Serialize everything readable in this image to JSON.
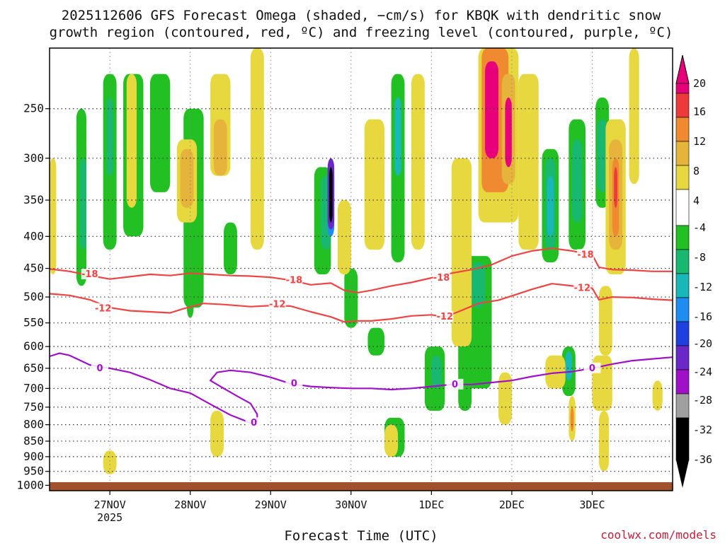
{
  "chart_data": {
    "type": "heatmap",
    "title_line1": "2025112606 GFS Forecast Omega (shaded, −cm/s) for KBQK with dendritic snow",
    "title_line2": "growth region (contoured, red, ºC) and freezing level (contoured, purple, ºC)",
    "xlabel": "Forecast Time (UTC)",
    "ylabel": "",
    "credit": "coolwx.com/models",
    "y_axis": {
      "unit": "hPa",
      "ticks": [
        250,
        300,
        350,
        400,
        450,
        500,
        550,
        600,
        650,
        700,
        750,
        800,
        850,
        900,
        950,
        1000
      ],
      "range": [
        200,
        1020
      ]
    },
    "x_axis": {
      "unit": "forecast hour",
      "range": [
        0,
        186
      ],
      "ticks": [
        {
          "hour": 18,
          "label": "27NOV",
          "sublabel": "2025"
        },
        {
          "hour": 42,
          "label": "28NOV",
          "sublabel": ""
        },
        {
          "hour": 66,
          "label": "29NOV",
          "sublabel": ""
        },
        {
          "hour": 90,
          "label": "30NOV",
          "sublabel": ""
        },
        {
          "hour": 114,
          "label": "1DEC",
          "sublabel": ""
        },
        {
          "hour": 138,
          "label": "2DEC",
          "sublabel": ""
        },
        {
          "hour": 162,
          "label": "3DEC",
          "sublabel": ""
        }
      ]
    },
    "colorbar": {
      "labels": [
        "20",
        "16",
        "12",
        "8",
        "4",
        "-4",
        "-8",
        "-12",
        "-16",
        "-20",
        "-24",
        "-28",
        "-32",
        "-36"
      ],
      "colors": {
        "c20": "#e8007a",
        "c16": "#ee3a3a",
        "c12": "#ef8a30",
        "c8": "#e6b43a",
        "c4": "#e8d840",
        "zero": "#ffffff",
        "cm4": "#22c022",
        "cm8": "#18b870",
        "cm12": "#18b8b8",
        "cm16": "#1e8cf0",
        "cm20": "#1e40e0",
        "cm24": "#6a28c8",
        "cm28": "#a010c8",
        "cm32": "#a0a0a0",
        "cm36": "#000000"
      }
    },
    "contours": [
      {
        "name": "dendritic-top",
        "label": "-18",
        "color": "#ee4444",
        "points": [
          [
            0,
            451
          ],
          [
            6,
            455
          ],
          [
            12,
            462
          ],
          [
            18,
            468
          ],
          [
            24,
            464
          ],
          [
            30,
            460
          ],
          [
            36,
            462
          ],
          [
            42,
            458
          ],
          [
            48,
            460
          ],
          [
            54,
            462
          ],
          [
            60,
            463
          ],
          [
            66,
            465
          ],
          [
            72,
            470
          ],
          [
            78,
            478
          ],
          [
            84,
            475
          ],
          [
            88,
            488
          ],
          [
            92,
            492
          ],
          [
            96,
            488
          ],
          [
            102,
            480
          ],
          [
            108,
            474
          ],
          [
            114,
            466
          ],
          [
            120,
            458
          ],
          [
            126,
            452
          ],
          [
            132,
            444
          ],
          [
            138,
            430
          ],
          [
            144,
            422
          ],
          [
            150,
            418
          ],
          [
            156,
            422
          ],
          [
            162,
            428
          ],
          [
            164,
            448
          ],
          [
            168,
            452
          ],
          [
            174,
            453
          ],
          [
            180,
            455
          ],
          [
            186,
            455
          ]
        ],
        "labels": [
          [
            12,
            460,
            "-18"
          ],
          [
            73,
            470,
            "-18"
          ],
          [
            117,
            466,
            "-18"
          ],
          [
            160,
            428,
            "-18"
          ]
        ]
      },
      {
        "name": "dendritic-bottom",
        "label": "-12",
        "color": "#ee4444",
        "points": [
          [
            0,
            494
          ],
          [
            6,
            497
          ],
          [
            12,
            505
          ],
          [
            18,
            520
          ],
          [
            24,
            526
          ],
          [
            30,
            528
          ],
          [
            36,
            530
          ],
          [
            40,
            522
          ],
          [
            46,
            512
          ],
          [
            52,
            514
          ],
          [
            60,
            518
          ],
          [
            66,
            516
          ],
          [
            72,
            517
          ],
          [
            78,
            528
          ],
          [
            84,
            538
          ],
          [
            88,
            548
          ],
          [
            92,
            546
          ],
          [
            96,
            546
          ],
          [
            102,
            542
          ],
          [
            108,
            536
          ],
          [
            114,
            534
          ],
          [
            118,
            538
          ],
          [
            122,
            528
          ],
          [
            128,
            512
          ],
          [
            134,
            506
          ],
          [
            140,
            494
          ],
          [
            144,
            486
          ],
          [
            150,
            476
          ],
          [
            156,
            480
          ],
          [
            162,
            484
          ],
          [
            164,
            505
          ],
          [
            168,
            500
          ],
          [
            174,
            501
          ],
          [
            180,
            504
          ],
          [
            186,
            506
          ]
        ],
        "labels": [
          [
            16,
            522,
            "-12"
          ],
          [
            68,
            514,
            "-12"
          ],
          [
            118,
            538,
            "-12"
          ],
          [
            159,
            484,
            "-12"
          ]
        ]
      },
      {
        "name": "freezing-level",
        "label": "0",
        "color": "#a010c8",
        "points": [
          [
            0,
            622
          ],
          [
            3,
            615
          ],
          [
            6,
            620
          ],
          [
            12,
            642
          ],
          [
            18,
            650
          ],
          [
            24,
            660
          ],
          [
            30,
            678
          ],
          [
            36,
            700
          ],
          [
            42,
            712
          ],
          [
            48,
            742
          ],
          [
            54,
            772
          ],
          [
            60,
            795
          ],
          [
            62,
            790
          ],
          [
            62,
            770
          ],
          [
            60,
            740
          ],
          [
            56,
            720
          ],
          [
            52,
            700
          ],
          [
            48,
            680
          ],
          [
            50,
            660
          ],
          [
            54,
            655
          ],
          [
            60,
            660
          ],
          [
            66,
            672
          ],
          [
            72,
            688
          ],
          [
            78,
            695
          ],
          [
            84,
            698
          ],
          [
            90,
            700
          ],
          [
            96,
            700
          ],
          [
            102,
            703
          ],
          [
            108,
            700
          ],
          [
            114,
            695
          ],
          [
            120,
            690
          ],
          [
            126,
            690
          ],
          [
            132,
            685
          ],
          [
            138,
            680
          ],
          [
            144,
            670
          ],
          [
            150,
            662
          ],
          [
            156,
            658
          ],
          [
            162,
            650
          ],
          [
            168,
            640
          ],
          [
            174,
            632
          ],
          [
            180,
            628
          ],
          [
            186,
            624
          ]
        ],
        "labels": [
          [
            15,
            650,
            "0"
          ],
          [
            61,
            795,
            "0"
          ],
          [
            73,
            688,
            "0"
          ],
          [
            121,
            690,
            "0"
          ],
          [
            162,
            650,
            "0"
          ]
        ]
      }
    ],
    "shaded_regions": [
      {
        "x": [
          8,
          11
        ],
        "p": [
          250,
          480
        ],
        "c": "cm4"
      },
      {
        "x": [
          9,
          11
        ],
        "p": [
          300,
          420
        ],
        "c": "cm8"
      },
      {
        "x": [
          16,
          20
        ],
        "p": [
          220,
          420
        ],
        "c": "cm4"
      },
      {
        "x": [
          17,
          19
        ],
        "p": [
          240,
          320
        ],
        "c": "cm8"
      },
      {
        "x": [
          22,
          28
        ],
        "p": [
          220,
          400
        ],
        "c": "cm4"
      },
      {
        "x": [
          30,
          36
        ],
        "p": [
          220,
          340
        ],
        "c": "cm4"
      },
      {
        "x": [
          40,
          46
        ],
        "p": [
          250,
          520
        ],
        "c": "cm4"
      },
      {
        "x": [
          52,
          56
        ],
        "p": [
          380,
          460
        ],
        "c": "cm4"
      },
      {
        "x": [
          41,
          43
        ],
        "p": [
          470,
          540
        ],
        "c": "cm4"
      },
      {
        "x": [
          79,
          84
        ],
        "p": [
          310,
          460
        ],
        "c": "cm4"
      },
      {
        "x": [
          81,
          84
        ],
        "p": [
          320,
          420
        ],
        "c": "cm8"
      },
      {
        "x": [
          83,
          85
        ],
        "p": [
          310,
          400
        ],
        "c": "cm16"
      },
      {
        "x": [
          83,
          85
        ],
        "p": [
          300,
          390
        ],
        "c": "cm24"
      },
      {
        "x": [
          83.5,
          84.5
        ],
        "p": [
          310,
          380
        ],
        "c": "cm36"
      },
      {
        "x": [
          88,
          92
        ],
        "p": [
          450,
          560
        ],
        "c": "cm4"
      },
      {
        "x": [
          102,
          106
        ],
        "p": [
          220,
          440
        ],
        "c": "cm4"
      },
      {
        "x": [
          103,
          105
        ],
        "p": [
          240,
          320
        ],
        "c": "cm12"
      },
      {
        "x": [
          112,
          118
        ],
        "p": [
          600,
          760
        ],
        "c": "cm4"
      },
      {
        "x": [
          114,
          117
        ],
        "p": [
          620,
          700
        ],
        "c": "cm8"
      },
      {
        "x": [
          124,
          132
        ],
        "p": [
          430,
          700
        ],
        "c": "cm4"
      },
      {
        "x": [
          126,
          130
        ],
        "p": [
          440,
          520
        ],
        "c": "cm8"
      },
      {
        "x": [
          122,
          126
        ],
        "p": [
          560,
          760
        ],
        "c": "cm4"
      },
      {
        "x": [
          147,
          152
        ],
        "p": [
          290,
          440
        ],
        "c": "cm4"
      },
      {
        "x": [
          148,
          151
        ],
        "p": [
          300,
          420
        ],
        "c": "cm8"
      },
      {
        "x": [
          148.5,
          150.5
        ],
        "p": [
          320,
          400
        ],
        "c": "cm12"
      },
      {
        "x": [
          155,
          160
        ],
        "p": [
          260,
          420
        ],
        "c": "cm4"
      },
      {
        "x": [
          156,
          159
        ],
        "p": [
          280,
          380
        ],
        "c": "cm8"
      },
      {
        "x": [
          163,
          167
        ],
        "p": [
          240,
          360
        ],
        "c": "cm4"
      },
      {
        "x": [
          163.5,
          166.5
        ],
        "p": [
          260,
          340
        ],
        "c": "cm8"
      },
      {
        "x": [
          153,
          157
        ],
        "p": [
          600,
          720
        ],
        "c": "cm4"
      },
      {
        "x": [
          154,
          156
        ],
        "p": [
          610,
          680
        ],
        "c": "cm12"
      },
      {
        "x": [
          100,
          106
        ],
        "p": [
          780,
          900
        ],
        "c": "cm4"
      },
      {
        "x": [
          95,
          100
        ],
        "p": [
          560,
          620
        ],
        "c": "cm4"
      },
      {
        "x": [
          0,
          2
        ],
        "p": [
          300,
          460
        ],
        "c": "c4"
      },
      {
        "x": [
          23,
          26
        ],
        "p": [
          220,
          360
        ],
        "c": "c4"
      },
      {
        "x": [
          38,
          44
        ],
        "p": [
          280,
          380
        ],
        "c": "c4"
      },
      {
        "x": [
          39,
          43
        ],
        "p": [
          290,
          360
        ],
        "c": "c8"
      },
      {
        "x": [
          48,
          54
        ],
        "p": [
          220,
          320
        ],
        "c": "c4"
      },
      {
        "x": [
          49,
          53
        ],
        "p": [
          260,
          320
        ],
        "c": "c8"
      },
      {
        "x": [
          60,
          64
        ],
        "p": [
          200,
          420
        ],
        "c": "c4"
      },
      {
        "x": [
          86,
          90
        ],
        "p": [
          350,
          460
        ],
        "c": "c4"
      },
      {
        "x": [
          94,
          100
        ],
        "p": [
          260,
          420
        ],
        "c": "c4"
      },
      {
        "x": [
          108,
          112
        ],
        "p": [
          220,
          420
        ],
        "c": "c4"
      },
      {
        "x": [
          120,
          126
        ],
        "p": [
          300,
          600
        ],
        "c": "c4"
      },
      {
        "x": [
          128,
          140
        ],
        "p": [
          200,
          380
        ],
        "c": "c4"
      },
      {
        "x": [
          129,
          137
        ],
        "p": [
          200,
          340
        ],
        "c": "c12"
      },
      {
        "x": [
          130,
          134
        ],
        "p": [
          210,
          300
        ],
        "c": "c20"
      },
      {
        "x": [
          135,
          139
        ],
        "p": [
          220,
          330
        ],
        "c": "c8"
      },
      {
        "x": [
          136,
          138
        ],
        "p": [
          240,
          310
        ],
        "c": "c20"
      },
      {
        "x": [
          140,
          146
        ],
        "p": [
          220,
          420
        ],
        "c": "c4"
      },
      {
        "x": [
          166,
          172
        ],
        "p": [
          260,
          460
        ],
        "c": "c4"
      },
      {
        "x": [
          167,
          171
        ],
        "p": [
          280,
          420
        ],
        "c": "c8"
      },
      {
        "x": [
          168,
          170
        ],
        "p": [
          300,
          400
        ],
        "c": "c12"
      },
      {
        "x": [
          168.5,
          169.5
        ],
        "p": [
          310,
          360
        ],
        "c": "c16"
      },
      {
        "x": [
          173,
          176
        ],
        "p": [
          200,
          330
        ],
        "c": "c4"
      },
      {
        "x": [
          164,
          168
        ],
        "p": [
          480,
          620
        ],
        "c": "c4"
      },
      {
        "x": [
          162,
          168
        ],
        "p": [
          620,
          760
        ],
        "c": "c4"
      },
      {
        "x": [
          148,
          154
        ],
        "p": [
          620,
          700
        ],
        "c": "c4"
      },
      {
        "x": [
          155,
          157
        ],
        "p": [
          720,
          850
        ],
        "c": "c4"
      },
      {
        "x": [
          155.5,
          156.5
        ],
        "p": [
          750,
          820
        ],
        "c": "c12"
      },
      {
        "x": [
          164,
          167
        ],
        "p": [
          760,
          950
        ],
        "c": "c4"
      },
      {
        "x": [
          48,
          52
        ],
        "p": [
          760,
          900
        ],
        "c": "c4"
      },
      {
        "x": [
          16,
          20
        ],
        "p": [
          880,
          960
        ],
        "c": "c4"
      },
      {
        "x": [
          134,
          138
        ],
        "p": [
          660,
          800
        ],
        "c": "c4"
      },
      {
        "x": [
          100,
          104
        ],
        "p": [
          800,
          900
        ],
        "c": "c4"
      },
      {
        "x": [
          180,
          183
        ],
        "p": [
          680,
          760
        ],
        "c": "c4"
      }
    ]
  }
}
